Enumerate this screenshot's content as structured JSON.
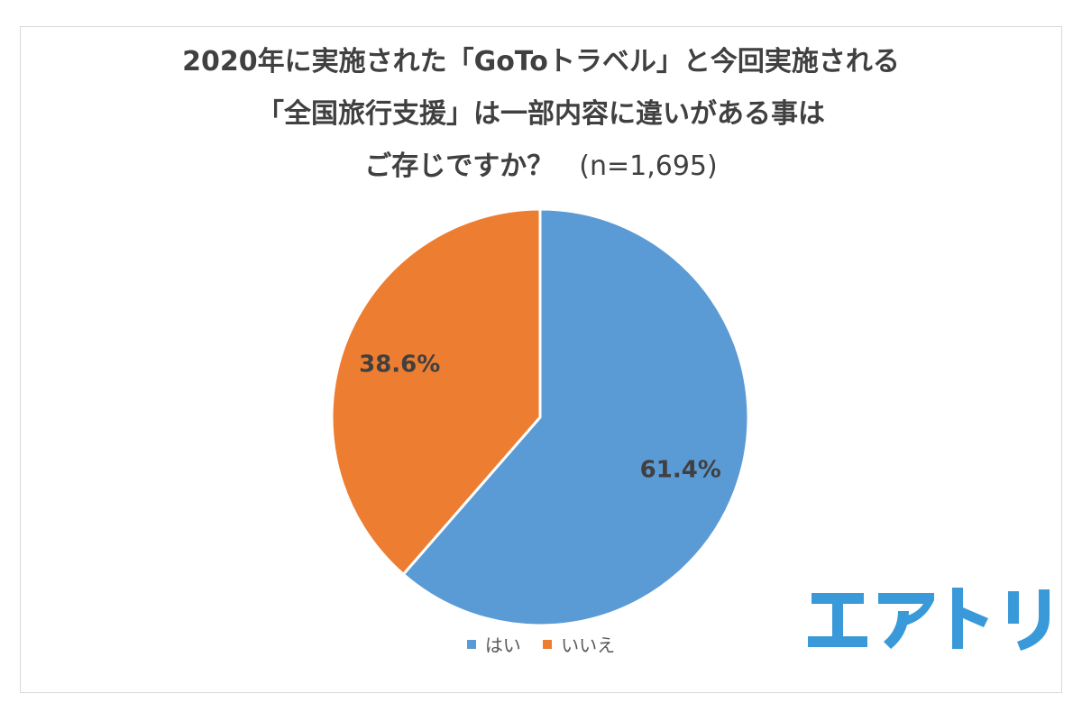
{
  "title": {
    "line1": "2020年に実施された「GoToトラベル」と今回実施される",
    "line2": "「全国旅行支援」は一部内容に違いがある事は",
    "line3": "ご存じですか？",
    "sample": "(n=1,695)"
  },
  "chart_data": {
    "type": "pie",
    "title": "2020年に実施された「GoToトラベル」と今回実施される「全国旅行支援」は一部内容に違いがある事はご存じですか？",
    "subtitle": "(n=1,695)",
    "categories": [
      "はい",
      "いいえ"
    ],
    "values": [
      61.4,
      38.6
    ],
    "labels": [
      "61.4%",
      "38.6%"
    ],
    "colors": [
      "#5b9bd5",
      "#ed7d31"
    ],
    "start_angle": "12 o'clock",
    "direction": "clockwise",
    "legend_position": "bottom"
  },
  "logo": {
    "text": "エアトリ",
    "color": "#3a9ad9",
    "icon": "airtrip-logo"
  }
}
